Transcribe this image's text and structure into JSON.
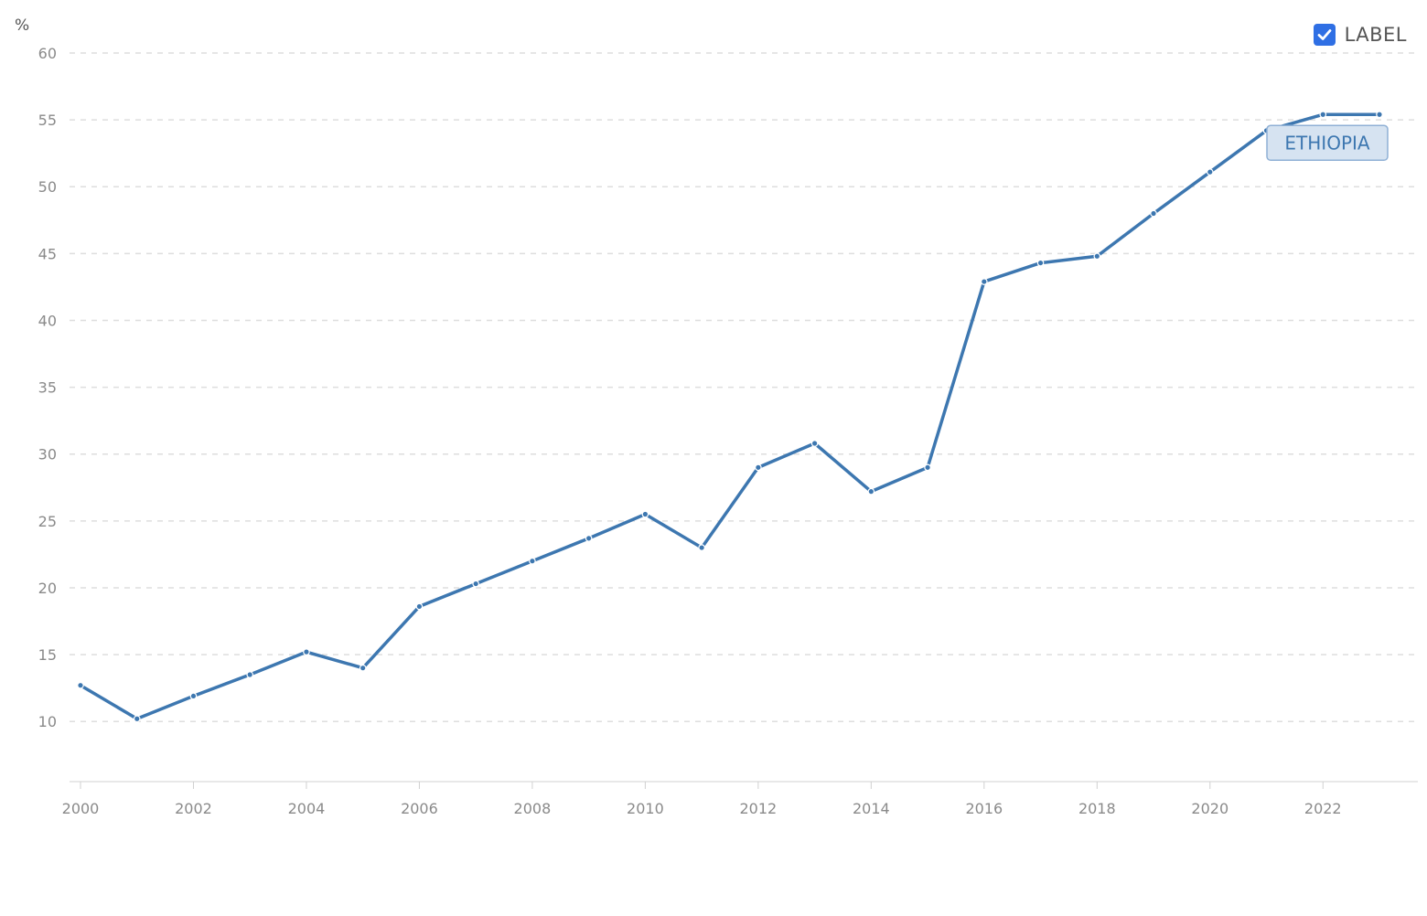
{
  "legend_toggle": {
    "label": "LABEL",
    "checked": true
  },
  "chart_data": {
    "type": "line",
    "unit_label": "%",
    "x": [
      2000,
      2001,
      2002,
      2003,
      2004,
      2005,
      2006,
      2007,
      2008,
      2009,
      2010,
      2011,
      2012,
      2013,
      2014,
      2015,
      2016,
      2017,
      2018,
      2019,
      2020,
      2021,
      2022,
      2023
    ],
    "x_ticks": [
      "2000",
      "2002",
      "2004",
      "2006",
      "2008",
      "2010",
      "2012",
      "2014",
      "2016",
      "2018",
      "2020",
      "2022"
    ],
    "y_ticks": [
      "10",
      "15",
      "20",
      "25",
      "30",
      "35",
      "40",
      "45",
      "50",
      "55",
      "60"
    ],
    "ylim": [
      5.5,
      60
    ],
    "xlim": [
      2000,
      2023
    ],
    "grid": true,
    "series": [
      {
        "name": "ETHIOPIA",
        "color": "#3d77b0",
        "values": [
          12.7,
          10.2,
          11.9,
          13.5,
          15.2,
          14.0,
          18.6,
          20.3,
          22.0,
          23.7,
          25.5,
          23.0,
          29.0,
          30.8,
          27.2,
          29.0,
          42.9,
          44.3,
          44.8,
          48.0,
          51.1,
          54.2,
          55.4,
          55.4
        ]
      }
    ]
  }
}
